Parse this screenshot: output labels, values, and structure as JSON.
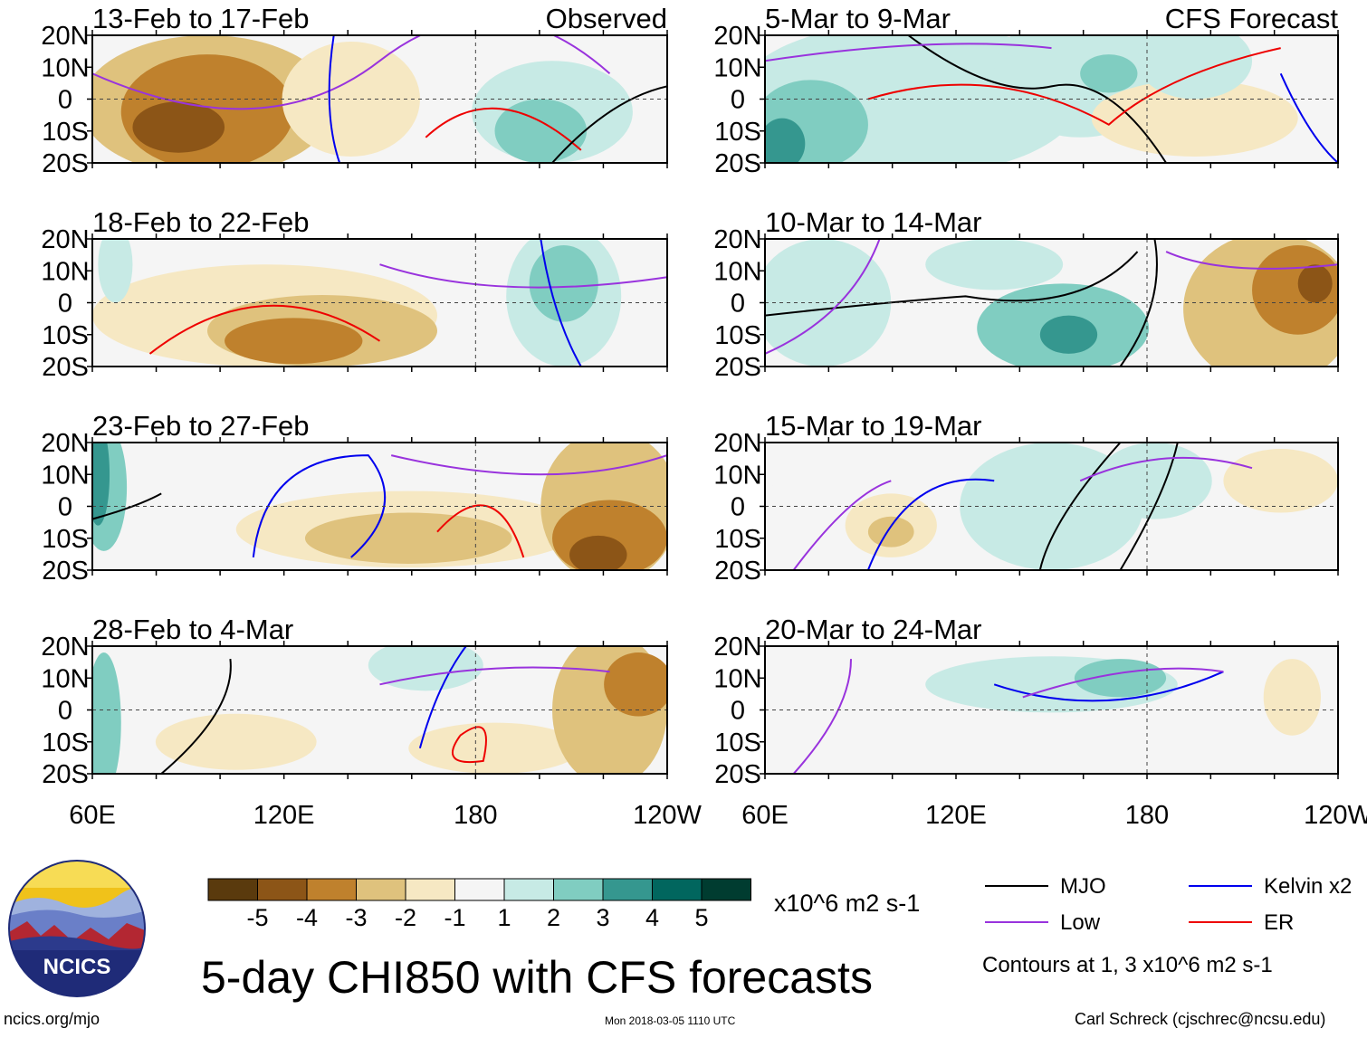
{
  "chart_data": {
    "type": "heatmap",
    "title": "5-day CHI850 with CFS forecasts",
    "columns": [
      {
        "name": "observed",
        "label": "Observed"
      },
      {
        "name": "forecast",
        "label": "CFS Forecast"
      }
    ],
    "panels": [
      {
        "id": "p1",
        "period": "13-Feb to 17-Feb",
        "source": "Observed"
      },
      {
        "id": "p2",
        "period": "18-Feb to 22-Feb",
        "source": "Observed"
      },
      {
        "id": "p3",
        "period": "23-Feb to 27-Feb",
        "source": "Observed"
      },
      {
        "id": "p4",
        "period": "28-Feb to 4-Mar",
        "source": "Observed"
      },
      {
        "id": "p5",
        "period": "5-Mar to 9-Mar",
        "source": "CFS Forecast"
      },
      {
        "id": "p6",
        "period": "10-Mar to 14-Mar",
        "source": "CFS Forecast"
      },
      {
        "id": "p7",
        "period": "15-Mar to 19-Mar",
        "source": "CFS Forecast"
      },
      {
        "id": "p8",
        "period": "20-Mar to 24-Mar",
        "source": "CFS Forecast"
      }
    ],
    "y_ticks": [
      "20N",
      "10N",
      "0",
      "10S",
      "20S"
    ],
    "x_ticks": [
      "60E",
      "120E",
      "180",
      "120W"
    ],
    "x_range": [
      60,
      240
    ],
    "y_range": [
      -20,
      20
    ],
    "colorbar": {
      "tick_labels": [
        "-5",
        "-4",
        "-3",
        "-2",
        "-1",
        "1",
        "2",
        "3",
        "4",
        "5"
      ],
      "colors": [
        "#5a3a0d",
        "#8c5517",
        "#bf812d",
        "#dfc27d",
        "#f6e8c3",
        "#f5f5f5",
        "#c7eae5",
        "#80cdc1",
        "#35978f",
        "#01665e",
        "#003c30"
      ],
      "units": "x10^6 m2 s-1"
    },
    "legend": [
      {
        "label": "MJO",
        "color": "#000000"
      },
      {
        "label": "Kelvin x2",
        "color": "#0000ee"
      },
      {
        "label": "Low",
        "color": "#9933dd"
      },
      {
        "label": "ER",
        "color": "#ee0000"
      }
    ],
    "contour_note": "Contours at 1, 3 x10^6 m2 s-1"
  },
  "branding": {
    "logo_text": "NCICS",
    "site": "ncics.org/mjo",
    "timestamp": "Mon 2018-03-05 1110 UTC",
    "author": "Carl Schreck (cjschrec@ncsu.edu)"
  }
}
